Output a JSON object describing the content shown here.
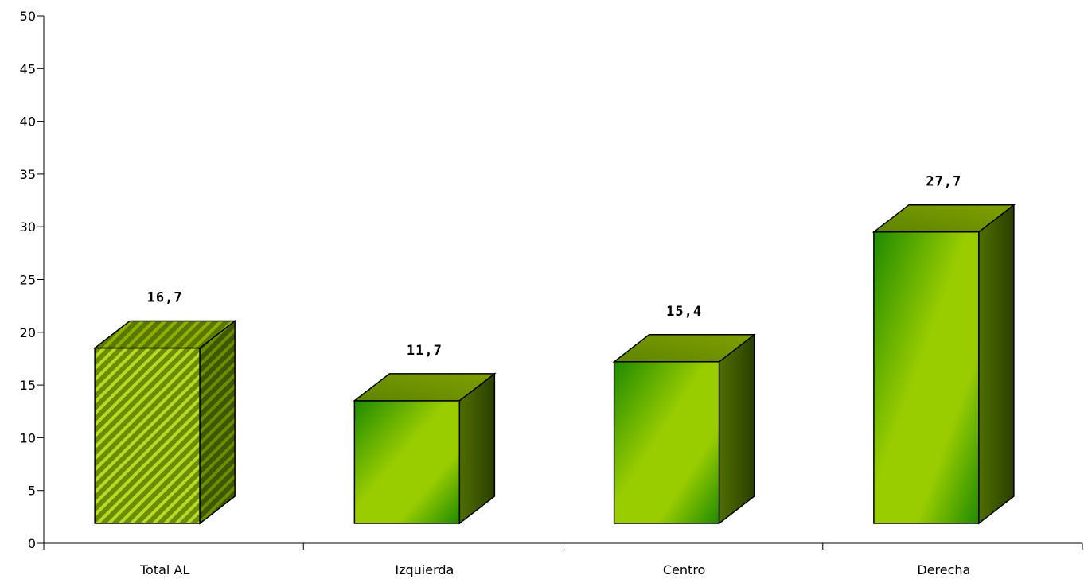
{
  "chart_data": {
    "type": "bar",
    "style": "3d",
    "categories": [
      "Total AL",
      "Izquierda",
      "Centro",
      "Derecha"
    ],
    "values": [
      16.7,
      11.7,
      15.4,
      27.7
    ],
    "data_labels": [
      "16,7",
      "11,7",
      "15,4",
      "27,7"
    ],
    "highlight_category": "Total AL",
    "y_ticks": [
      "0",
      "5",
      "10",
      "15",
      "20",
      "25",
      "30",
      "35",
      "40",
      "45",
      "50"
    ],
    "ylim": [
      0,
      50
    ],
    "grid": false,
    "legend": "none",
    "title": "",
    "xlabel": "",
    "ylabel": "",
    "colors": {
      "bar_light": "#9acd00",
      "bar_dark": "#2e8b00",
      "top_face": "#6f9400",
      "side_face": "#4a6600",
      "side_dark": "#2f4400",
      "hatch_base": "#6b8e00",
      "hatch_stripe": "#b8d82a"
    }
  }
}
